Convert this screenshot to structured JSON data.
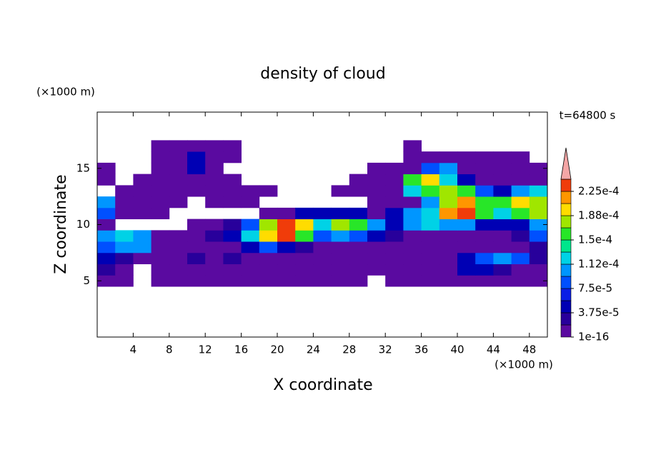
{
  "chart_data": {
    "type": "contour",
    "title": "density of cloud",
    "xlabel": "X coordinate",
    "ylabel": "Z coordinate",
    "xunit": "(×1000 m)",
    "yunit": "(×1000 m)",
    "annotation": "t=64800 s",
    "xlim": [
      0,
      50
    ],
    "ylim": [
      0,
      20
    ],
    "xticks": [
      4,
      8,
      12,
      16,
      20,
      24,
      28,
      32,
      36,
      40,
      44,
      48
    ],
    "yticks": [
      5,
      10,
      15
    ],
    "x": [
      1,
      3,
      5,
      7,
      9,
      11,
      13,
      15,
      17,
      19,
      21,
      23,
      25,
      27,
      29,
      31,
      33,
      35,
      37,
      39,
      41,
      43,
      45,
      47,
      49
    ],
    "z": [
      5,
      6,
      7,
      8,
      9,
      10,
      11,
      12,
      13,
      14,
      15,
      16,
      17
    ],
    "values": [
      [
        1e-05,
        1e-05,
        null,
        1e-05,
        1e-05,
        1e-05,
        1e-05,
        1e-05,
        1e-05,
        1e-05,
        1e-05,
        1e-05,
        1e-05,
        1e-05,
        1e-05,
        null,
        1e-05,
        1e-05,
        1e-05,
        1e-05,
        1e-05,
        1e-05,
        1e-05,
        1e-05,
        1e-05
      ],
      [
        3e-05,
        1e-05,
        null,
        1e-05,
        1e-05,
        1e-05,
        1e-05,
        1e-05,
        1e-05,
        1e-05,
        1e-05,
        1e-05,
        1e-05,
        1e-05,
        1e-05,
        1e-05,
        1e-05,
        1e-05,
        1e-05,
        1e-05,
        5e-05,
        5e-05,
        3e-05,
        1e-05,
        1e-05
      ],
      [
        5e-05,
        3e-05,
        1e-05,
        1e-05,
        1e-05,
        3e-05,
        1e-05,
        3e-05,
        1e-05,
        1e-05,
        1e-05,
        1e-05,
        1e-05,
        1e-05,
        1e-05,
        1e-05,
        1e-05,
        1e-05,
        1e-05,
        1e-05,
        5e-05,
        8e-05,
        0.0001,
        8e-05,
        3e-05
      ],
      [
        8e-05,
        0.0001,
        0.0001,
        1e-05,
        1e-05,
        1e-05,
        1e-05,
        1e-05,
        5e-05,
        8e-05,
        5e-05,
        3e-05,
        1e-05,
        1e-05,
        1e-05,
        1e-05,
        1e-05,
        1e-05,
        1e-05,
        1e-05,
        1e-05,
        1e-05,
        1e-05,
        1e-05,
        3e-05
      ],
      [
        0.0001,
        0.00012,
        0.0001,
        1e-05,
        1e-05,
        1e-05,
        3e-05,
        5e-05,
        0.00012,
        0.0002,
        0.00024,
        0.00015,
        8e-05,
        0.0001,
        8e-05,
        5e-05,
        3e-05,
        1e-05,
        1e-05,
        1e-05,
        1e-05,
        1e-05,
        1e-05,
        3e-05,
        8e-05
      ],
      [
        1e-05,
        null,
        null,
        null,
        null,
        1e-05,
        1e-05,
        3e-05,
        8e-05,
        0.00018,
        0.00023,
        0.0002,
        0.00012,
        0.00018,
        0.00015,
        0.0001,
        5e-05,
        0.0001,
        0.00012,
        0.0001,
        0.0001,
        5e-05,
        5e-05,
        5e-05,
        0.0001
      ],
      [
        8e-05,
        1e-05,
        1e-05,
        1e-05,
        null,
        null,
        null,
        null,
        null,
        1e-05,
        1e-05,
        5e-05,
        5e-05,
        5e-05,
        5e-05,
        1e-05,
        5e-05,
        0.0001,
        0.00012,
        0.00022,
        0.00023,
        0.00015,
        0.00012,
        0.00015,
        0.00018
      ],
      [
        0.0001,
        1e-05,
        1e-05,
        1e-05,
        1e-05,
        null,
        1e-05,
        1e-05,
        1e-05,
        null,
        null,
        null,
        null,
        null,
        null,
        1e-05,
        1e-05,
        1e-05,
        0.0001,
        0.00018,
        0.00022,
        0.00015,
        0.00015,
        0.0002,
        0.00018
      ],
      [
        null,
        1e-05,
        1e-05,
        1e-05,
        1e-05,
        1e-05,
        1e-05,
        1e-05,
        1e-05,
        1e-05,
        null,
        null,
        null,
        1e-05,
        1e-05,
        1e-05,
        1e-05,
        0.00012,
        0.00015,
        0.00018,
        0.00015,
        8e-05,
        5e-05,
        0.0001,
        0.00012
      ],
      [
        1e-05,
        null,
        1e-05,
        1e-05,
        1e-05,
        1e-05,
        1e-05,
        1e-05,
        null,
        null,
        null,
        null,
        null,
        null,
        1e-05,
        1e-05,
        1e-05,
        0.00015,
        0.0002,
        0.00012,
        5e-05,
        1e-05,
        1e-05,
        1e-05,
        1e-05
      ],
      [
        1e-05,
        null,
        null,
        1e-05,
        1e-05,
        5e-05,
        1e-05,
        null,
        null,
        null,
        null,
        null,
        null,
        null,
        null,
        1e-05,
        1e-05,
        1e-05,
        8e-05,
        0.0001,
        1e-05,
        1e-05,
        1e-05,
        1e-05,
        1e-05
      ],
      [
        null,
        null,
        null,
        1e-05,
        1e-05,
        4e-05,
        1e-05,
        1e-05,
        null,
        null,
        null,
        null,
        null,
        null,
        null,
        null,
        null,
        1e-05,
        1e-05,
        1e-05,
        1e-05,
        1e-05,
        1e-05,
        1e-05,
        null
      ],
      [
        null,
        null,
        null,
        1e-05,
        1e-05,
        1e-05,
        1e-05,
        1e-05,
        null,
        null,
        null,
        null,
        null,
        null,
        null,
        null,
        null,
        1e-05,
        null,
        null,
        null,
        null,
        null,
        null,
        null
      ]
    ],
    "colorbar": {
      "levels": [
        1e-16,
        1.875e-05,
        3.75e-05,
        5.625e-05,
        7.5e-05,
        9.375e-05,
        0.0001125,
        0.00013125,
        0.00015,
        0.00016875,
        0.0001875,
        0.00020625,
        0.000225,
        0.00024375
      ],
      "colors": [
        "#5a0aa0",
        "#28009b",
        "#0000b4",
        "#0a1ee6",
        "#0050ff",
        "#0096ff",
        "#00d2e6",
        "#00e68c",
        "#28e628",
        "#a0e600",
        "#ffdc00",
        "#ff9600",
        "#f03c0a"
      ],
      "extend_color": "#f4a6a6",
      "ticks": [
        1e-16,
        {
          "value": 3.75e-05,
          "label": "3.75e-5"
        },
        {
          "value": 7.5e-05,
          "label": "7.5e-5"
        },
        {
          "value": 0.0001125,
          "label": "1.12e-4"
        },
        {
          "value": 0.00015,
          "label": "1.5e-4"
        },
        {
          "value": 0.0001875,
          "label": "1.88e-4"
        },
        {
          "value": 0.000225,
          "label": "2.25e-4"
        }
      ]
    }
  }
}
